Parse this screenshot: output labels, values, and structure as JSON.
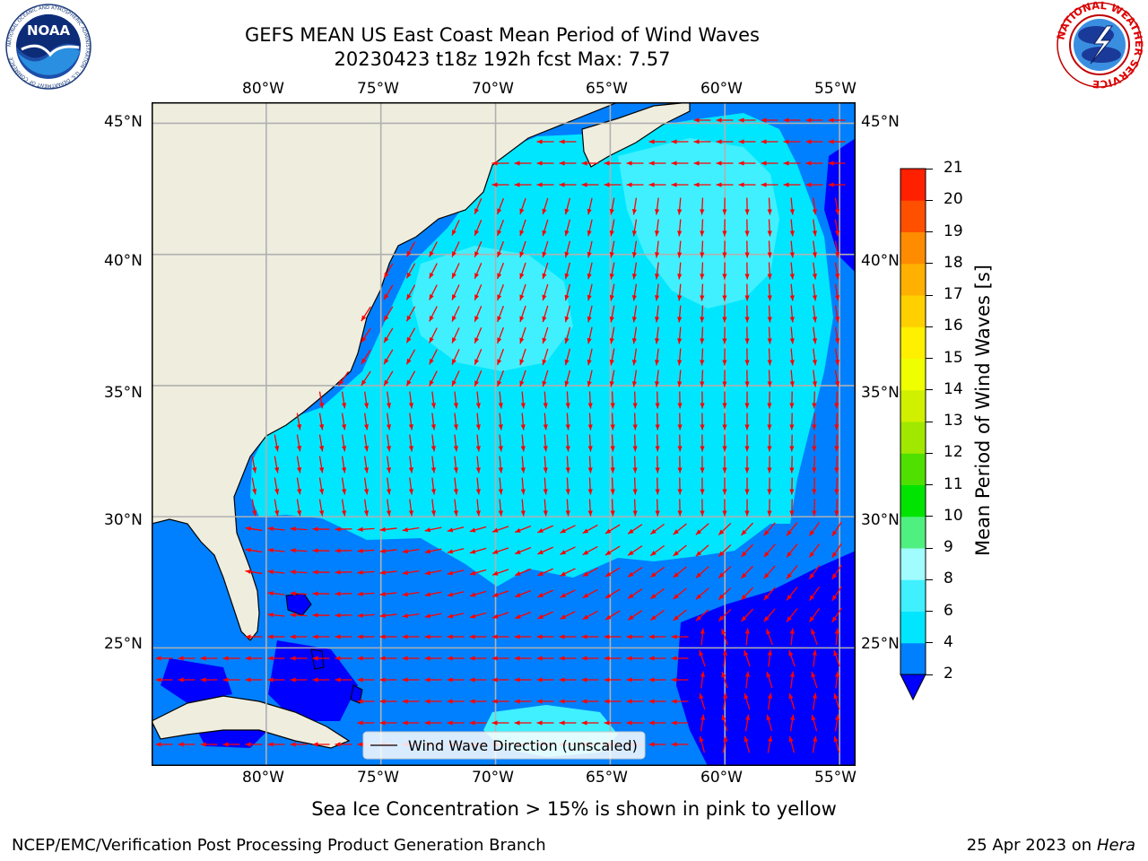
{
  "title": {
    "line1": "GEFS MEAN US East Coast Mean Period of Wind Waves",
    "line2": "20230423 t18z 192h fcst   Max: 7.57"
  },
  "map": {
    "lon_labels": [
      "80°W",
      "75°W",
      "70°W",
      "65°W",
      "60°W",
      "55°W"
    ],
    "lat_labels": [
      "45°N",
      "40°N",
      "35°N",
      "30°N",
      "25°N"
    ],
    "lon_values": [
      -80,
      -75,
      -70,
      -65,
      -60,
      -55
    ],
    "lat_values": [
      45,
      40,
      35,
      30,
      25
    ],
    "extent": {
      "lon_min": -85,
      "lon_max": -54.3,
      "lat_min": 20.5,
      "lat_max": 45.8
    },
    "land_color": "#efedde",
    "grid_color": "#b0b0b0",
    "legend_label": "Wind Wave Direction (unscaled)",
    "arrow_color": "#ff0000"
  },
  "colorbar": {
    "label": "Mean Period of Wind Waves [s]",
    "tick_labels": [
      "2",
      "4",
      "6",
      "8",
      "9",
      "10",
      "11",
      "12",
      "13",
      "14",
      "15",
      "16",
      "17",
      "18",
      "19",
      "20",
      "21"
    ],
    "levels": [
      2,
      4,
      6,
      8,
      9,
      10,
      11,
      12,
      13,
      14,
      15,
      16,
      17,
      18,
      19,
      20,
      21
    ],
    "colors": [
      "#0080ff",
      "#00e6ff",
      "#40f0ff",
      "#a0fcff",
      "#50f080",
      "#00e400",
      "#50e000",
      "#a0e800",
      "#d0f000",
      "#f0ff00",
      "#fff000",
      "#ffd000",
      "#ffb000",
      "#ff8c00",
      "#ff5000",
      "#ff2000",
      "#ff0000"
    ],
    "under_color": "#0000ff"
  },
  "footer": {
    "sea_ice_note": "Sea Ice Concentration > 15% is shown in pink to yellow",
    "left": "NCEP/EMC/Verification Post Processing Product Generation Branch",
    "right_date": "25 Apr 2023 on ",
    "right_machine": "Hera"
  },
  "logos": {
    "noaa_text": "NOAA",
    "noaa_ring": "NATIONAL OCEANIC AND ATMOSPHERIC ADMINISTRATION · U.S. DEPARTMENT OF COMMERCE",
    "nws_ring": "NATIONAL WEATHER SERVICE"
  },
  "colors": {
    "wave_2_4": "#0080ff",
    "wave_4_6": "#00e6ff",
    "wave_6_8": "#40f0ff",
    "wave_under": "#0000ff"
  }
}
